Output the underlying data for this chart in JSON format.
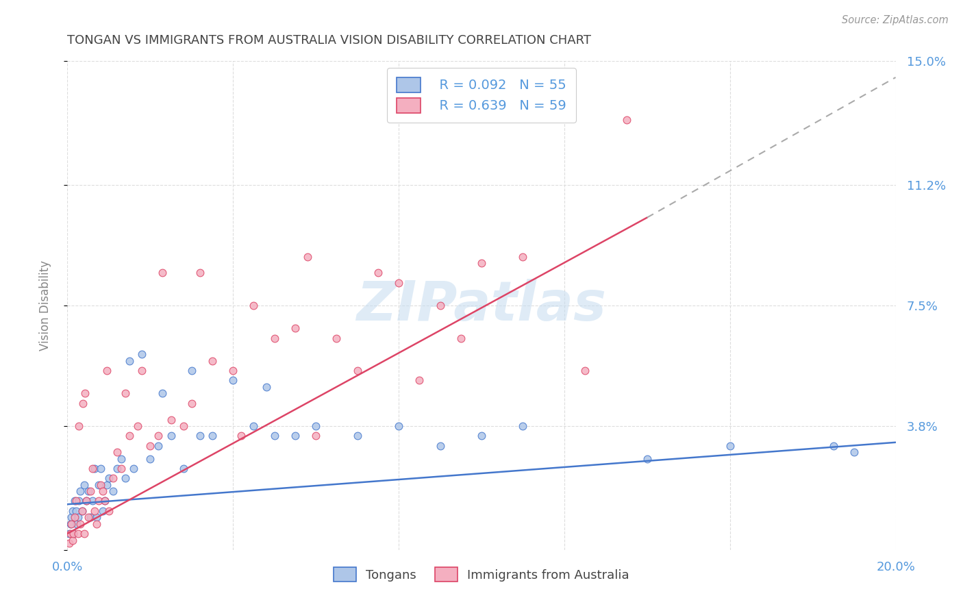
{
  "title": "TONGAN VS IMMIGRANTS FROM AUSTRALIA VISION DISABILITY CORRELATION CHART",
  "source_text": "Source: ZipAtlas.com",
  "ylabel": "Vision Disability",
  "xlim": [
    0.0,
    20.0
  ],
  "ylim": [
    0.0,
    15.0
  ],
  "ytick_labels": [
    "",
    "3.8%",
    "7.5%",
    "11.2%",
    "15.0%"
  ],
  "ytick_values": [
    0.0,
    3.8,
    7.5,
    11.2,
    15.0
  ],
  "xtick_labels": [
    "0.0%",
    "",
    "",
    "",
    "",
    "20.0%"
  ],
  "xtick_values": [
    0.0,
    4.0,
    8.0,
    12.0,
    16.0,
    20.0
  ],
  "tongans_color": "#aec6e8",
  "immigrants_color": "#f4afc0",
  "trend_tongans_color": "#4477cc",
  "trend_immigrants_color": "#dd4466",
  "trend_tongans_start_y": 1.4,
  "trend_tongans_end_y": 3.3,
  "trend_immigrants_start_y": 0.5,
  "trend_immigrants_end_y": 10.2,
  "trend_immigrants_solid_end_x": 14.0,
  "trend_immigrants_dashed_end_x": 20.0,
  "trend_immigrants_dashed_end_y": 14.5,
  "legend_text1": "R = 0.092   N = 55",
  "legend_text2": "R = 0.639   N = 59",
  "label1": "Tongans",
  "label2": "Immigrants from Australia",
  "watermark": "ZIPatlas",
  "background_color": "#ffffff",
  "grid_color": "#dddddd",
  "title_color": "#444444",
  "axis_label_color": "#5599dd",
  "tongans_x": [
    0.05,
    0.08,
    0.1,
    0.12,
    0.15,
    0.18,
    0.2,
    0.22,
    0.25,
    0.28,
    0.3,
    0.35,
    0.4,
    0.45,
    0.5,
    0.55,
    0.6,
    0.65,
    0.7,
    0.75,
    0.8,
    0.85,
    0.9,
    0.95,
    1.0,
    1.1,
    1.2,
    1.3,
    1.4,
    1.5,
    1.6,
    1.8,
    2.0,
    2.2,
    2.5,
    2.8,
    3.0,
    3.5,
    4.0,
    4.5,
    5.0,
    5.5,
    6.0,
    7.0,
    8.0,
    9.0,
    10.0,
    11.0,
    14.0,
    16.0,
    18.5,
    19.0,
    2.3,
    3.2,
    4.8
  ],
  "tongans_y": [
    0.5,
    0.8,
    1.0,
    1.2,
    0.5,
    1.5,
    1.2,
    0.8,
    1.0,
    1.5,
    1.8,
    1.2,
    2.0,
    1.5,
    1.8,
    1.0,
    1.5,
    2.5,
    1.0,
    2.0,
    2.5,
    1.2,
    1.5,
    2.0,
    2.2,
    1.8,
    2.5,
    2.8,
    2.2,
    5.8,
    2.5,
    6.0,
    2.8,
    3.2,
    3.5,
    2.5,
    5.5,
    3.5,
    5.2,
    3.8,
    3.5,
    3.5,
    3.8,
    3.5,
    3.8,
    3.2,
    3.5,
    3.8,
    2.8,
    3.2,
    3.2,
    3.0,
    4.8,
    3.5,
    5.0
  ],
  "immigrants_x": [
    0.05,
    0.08,
    0.1,
    0.12,
    0.15,
    0.18,
    0.2,
    0.25,
    0.3,
    0.35,
    0.4,
    0.45,
    0.5,
    0.55,
    0.6,
    0.65,
    0.7,
    0.75,
    0.8,
    0.85,
    0.9,
    1.0,
    1.1,
    1.2,
    1.3,
    1.5,
    1.7,
    2.0,
    2.2,
    2.5,
    2.8,
    3.0,
    3.5,
    4.0,
    4.5,
    5.0,
    5.5,
    6.5,
    7.5,
    8.0,
    9.0,
    10.0,
    11.0,
    12.5,
    0.95,
    1.4,
    1.8,
    2.3,
    3.2,
    4.2,
    5.8,
    6.0,
    7.0,
    8.5,
    9.5,
    0.38,
    0.28,
    0.42,
    13.5
  ],
  "immigrants_y": [
    0.2,
    0.5,
    0.8,
    0.3,
    0.5,
    1.0,
    1.5,
    0.5,
    0.8,
    1.2,
    0.5,
    1.5,
    1.0,
    1.8,
    2.5,
    1.2,
    0.8,
    1.5,
    2.0,
    1.8,
    1.5,
    1.2,
    2.2,
    3.0,
    2.5,
    3.5,
    3.8,
    3.2,
    3.5,
    4.0,
    3.8,
    4.5,
    5.8,
    5.5,
    7.5,
    6.5,
    6.8,
    6.5,
    8.5,
    8.2,
    7.5,
    8.8,
    9.0,
    5.5,
    5.5,
    4.8,
    5.5,
    8.5,
    8.5,
    3.5,
    9.0,
    3.5,
    5.5,
    5.2,
    6.5,
    4.5,
    3.8,
    4.8,
    13.2
  ]
}
